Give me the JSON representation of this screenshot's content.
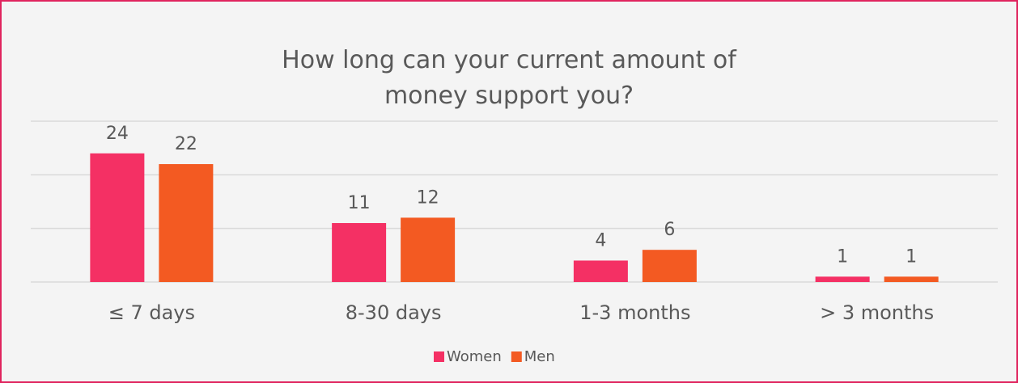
{
  "chart_data": {
    "type": "bar",
    "title": "How long can your current amount of money support you?",
    "categories": [
      "≤ 7 days",
      "8-30 days",
      "1-3 months",
      "> 3 months"
    ],
    "series": [
      {
        "name": "Women",
        "color": "#f43064",
        "values": [
          24,
          11,
          4,
          1
        ]
      },
      {
        "name": "Men",
        "color": "#f35a22",
        "values": [
          22,
          12,
          6,
          1
        ]
      }
    ],
    "ylim": [
      0,
      30
    ],
    "yticks": [
      0,
      10,
      20,
      30
    ],
    "grid": true,
    "legend": "bottom"
  }
}
